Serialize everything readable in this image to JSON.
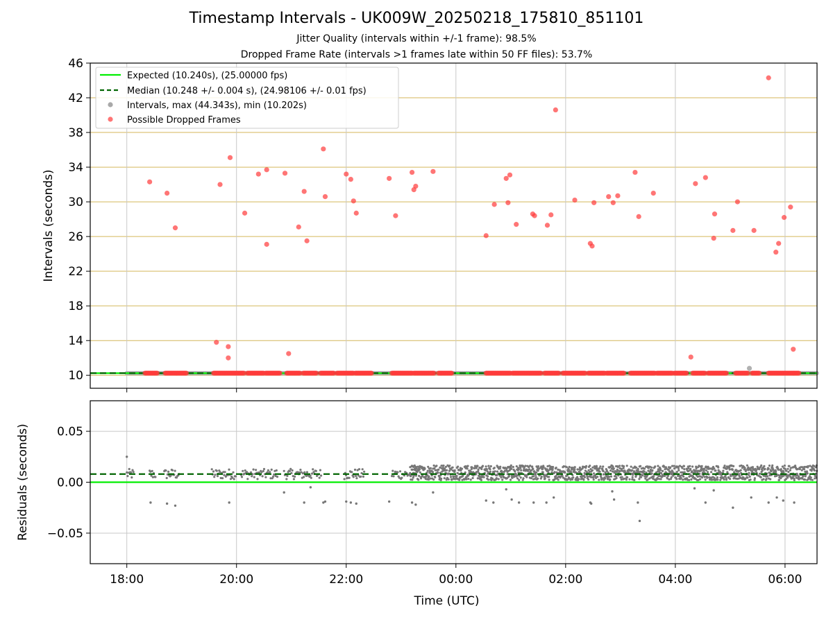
{
  "title": "Timestamp Intervals - UK009W_20250218_175810_851101",
  "subtitle_jitter": "Jitter Quality (intervals within +/-1 frame): 98.5%",
  "subtitle_dropped": "Dropped Frame Rate (intervals >1 frames late within 50 FF files): 53.7%",
  "colors": {
    "expected": "#00ee00",
    "median": "#006400",
    "intervals": "#a9a9a9",
    "dropped": "#ff3b3b",
    "residual": "#777777",
    "grid_gold": "#d4b65a",
    "grid_gray": "#c8c8c8"
  },
  "chart_data": [
    {
      "type": "scatter",
      "panel": "intervals",
      "ylabel": "Intervals (seconds)",
      "ylim": [
        8.5,
        46
      ],
      "yticks": [
        "10",
        "14",
        "18",
        "22",
        "26",
        "30",
        "34",
        "38",
        "42",
        "46"
      ],
      "xlim": [
        "17:20",
        "06:35"
      ],
      "xticks": [
        "18:00",
        "20:00",
        "22:00",
        "00:00",
        "02:00",
        "04:00",
        "06:00"
      ],
      "legend_position": "top-left",
      "legend": [
        "Expected (10.240s), (25.00000 fps)",
        "Median (10.248 +/- 0.004 s), (24.98106 +/- 0.01 fps)",
        "Intervals, max (44.343s), min (10.202s)",
        "Possible Dropped Frames"
      ],
      "expected_interval": 10.24,
      "median_interval": 10.248,
      "max_interval": 44.343,
      "min_interval": 10.202,
      "baseline_dropped_ranges": [
        [
          "18:20",
          "18:34"
        ],
        [
          "18:42",
          "19:06"
        ],
        [
          "19:35",
          "20:08"
        ],
        [
          "20:12",
          "20:30"
        ],
        [
          "20:32",
          "20:48"
        ],
        [
          "20:55",
          "21:10"
        ],
        [
          "21:13",
          "21:28"
        ],
        [
          "21:32",
          "21:47"
        ],
        [
          "21:50",
          "22:08"
        ],
        [
          "22:10",
          "22:28"
        ],
        [
          "22:50",
          "23:12"
        ],
        [
          "23:14",
          "23:37"
        ],
        [
          "23:41",
          "23:56"
        ],
        [
          "00:33",
          "01:00"
        ],
        [
          "01:02",
          "01:33"
        ],
        [
          "01:37",
          "01:53"
        ],
        [
          "01:57",
          "02:22"
        ],
        [
          "02:25",
          "02:43"
        ],
        [
          "02:45",
          "03:04"
        ],
        [
          "03:11",
          "03:38"
        ],
        [
          "03:40",
          "03:57"
        ],
        [
          "03:59",
          "04:13"
        ],
        [
          "04:19",
          "04:33"
        ],
        [
          "04:36",
          "04:56"
        ],
        [
          "05:06",
          "05:20"
        ],
        [
          "05:24",
          "05:32"
        ],
        [
          "05:42",
          "06:15"
        ]
      ],
      "interval_points": [
        [
          "05:21",
          10.8
        ]
      ],
      "dropped_points": [
        [
          "18:25",
          32.3
        ],
        [
          "18:44",
          31.0
        ],
        [
          "18:53",
          27.0
        ],
        [
          "19:38",
          13.8
        ],
        [
          "19:42",
          32.0
        ],
        [
          "19:51",
          13.3
        ],
        [
          "19:51",
          12.0
        ],
        [
          "19:53",
          35.1
        ],
        [
          "20:09",
          28.7
        ],
        [
          "20:24",
          33.2
        ],
        [
          "20:33",
          25.1
        ],
        [
          "20:33",
          33.7
        ],
        [
          "20:53",
          33.3
        ],
        [
          "20:57",
          12.5
        ],
        [
          "21:08",
          27.1
        ],
        [
          "21:14",
          31.2
        ],
        [
          "21:17",
          25.5
        ],
        [
          "21:35",
          36.1
        ],
        [
          "21:37",
          30.6
        ],
        [
          "22:00",
          33.2
        ],
        [
          "22:05",
          32.6
        ],
        [
          "22:08",
          30.1
        ],
        [
          "22:11",
          28.7
        ],
        [
          "22:47",
          32.7
        ],
        [
          "22:54",
          28.4
        ],
        [
          "23:12",
          33.4
        ],
        [
          "23:14",
          31.4
        ],
        [
          "23:16",
          31.8
        ],
        [
          "23:35",
          33.5
        ],
        [
          "00:33",
          26.1
        ],
        [
          "00:42",
          29.7
        ],
        [
          "00:55",
          32.7
        ],
        [
          "00:57",
          29.9
        ],
        [
          "00:59",
          33.1
        ],
        [
          "01:06",
          27.4
        ],
        [
          "01:24",
          28.6
        ],
        [
          "01:26",
          28.4
        ],
        [
          "01:40",
          27.3
        ],
        [
          "01:44",
          28.5
        ],
        [
          "01:49",
          40.6
        ],
        [
          "02:10",
          30.2
        ],
        [
          "02:27",
          25.2
        ],
        [
          "02:29",
          24.9
        ],
        [
          "02:31",
          29.9
        ],
        [
          "02:47",
          30.6
        ],
        [
          "02:52",
          29.9
        ],
        [
          "02:57",
          30.7
        ],
        [
          "03:16",
          33.4
        ],
        [
          "03:20",
          28.3
        ],
        [
          "03:36",
          31.0
        ],
        [
          "04:17",
          12.1
        ],
        [
          "04:22",
          32.1
        ],
        [
          "04:33",
          32.8
        ],
        [
          "04:43",
          28.6
        ],
        [
          "04:42",
          25.8
        ],
        [
          "05:03",
          26.7
        ],
        [
          "05:08",
          30.0
        ],
        [
          "05:26",
          26.7
        ],
        [
          "05:42",
          44.3
        ],
        [
          "05:50",
          24.2
        ],
        [
          "05:53",
          25.2
        ],
        [
          "05:59",
          28.2
        ],
        [
          "06:06",
          29.4
        ],
        [
          "06:09",
          13.0
        ]
      ]
    },
    {
      "type": "scatter",
      "panel": "residuals",
      "ylabel": "Residuals (seconds)",
      "xlabel": "Time (UTC)",
      "ylim": [
        -0.08,
        0.08
      ],
      "yticks": [
        "0.05",
        "0.00",
        "−0.05"
      ],
      "xlim": [
        "17:20",
        "06:35"
      ],
      "xticks": [
        "18:00",
        "20:00",
        "22:00",
        "00:00",
        "02:00",
        "04:00",
        "06:00"
      ],
      "expected_residual": 0.0,
      "median_residual": 0.008,
      "sparse_clusters": [
        [
          "18:00",
          "18:08"
        ],
        [
          "18:25",
          "18:32"
        ],
        [
          "18:41",
          "18:58"
        ],
        [
          "19:33",
          "20:00"
        ],
        [
          "20:05",
          "20:45"
        ],
        [
          "20:52",
          "21:33"
        ],
        [
          "21:58",
          "22:20"
        ],
        [
          "22:50",
          "23:15"
        ]
      ],
      "dense_range": [
        "23:10",
        "06:35"
      ],
      "outlier_points": [
        [
          "18:00",
          0.025
        ],
        [
          "18:26",
          -0.02
        ],
        [
          "18:44",
          -0.021
        ],
        [
          "18:53",
          -0.023
        ],
        [
          "19:52",
          -0.02
        ],
        [
          "20:52",
          -0.01
        ],
        [
          "21:14",
          -0.02
        ],
        [
          "21:21",
          -0.005
        ],
        [
          "21:35",
          -0.02
        ],
        [
          "21:37",
          -0.019
        ],
        [
          "22:00",
          -0.019
        ],
        [
          "22:05",
          -0.02
        ],
        [
          "22:11",
          -0.021
        ],
        [
          "22:47",
          -0.019
        ],
        [
          "23:12",
          -0.02
        ],
        [
          "23:16",
          -0.022
        ],
        [
          "23:35",
          -0.01
        ],
        [
          "00:33",
          -0.018
        ],
        [
          "00:41",
          -0.02
        ],
        [
          "00:55",
          -0.007
        ],
        [
          "01:01",
          -0.017
        ],
        [
          "01:09",
          -0.02
        ],
        [
          "01:25",
          -0.02
        ],
        [
          "01:39",
          -0.02
        ],
        [
          "01:47",
          -0.015
        ],
        [
          "02:27",
          -0.02
        ],
        [
          "02:28",
          -0.021
        ],
        [
          "02:51",
          -0.009
        ],
        [
          "02:53",
          -0.017
        ],
        [
          "03:19",
          -0.02
        ],
        [
          "03:21",
          -0.038
        ],
        [
          "04:21",
          -0.006
        ],
        [
          "04:33",
          -0.02
        ],
        [
          "04:42",
          -0.008
        ],
        [
          "05:03",
          -0.025
        ],
        [
          "05:23",
          -0.015
        ],
        [
          "05:42",
          -0.02
        ],
        [
          "05:51",
          -0.015
        ],
        [
          "05:58",
          -0.018
        ],
        [
          "06:10",
          -0.02
        ]
      ]
    }
  ]
}
